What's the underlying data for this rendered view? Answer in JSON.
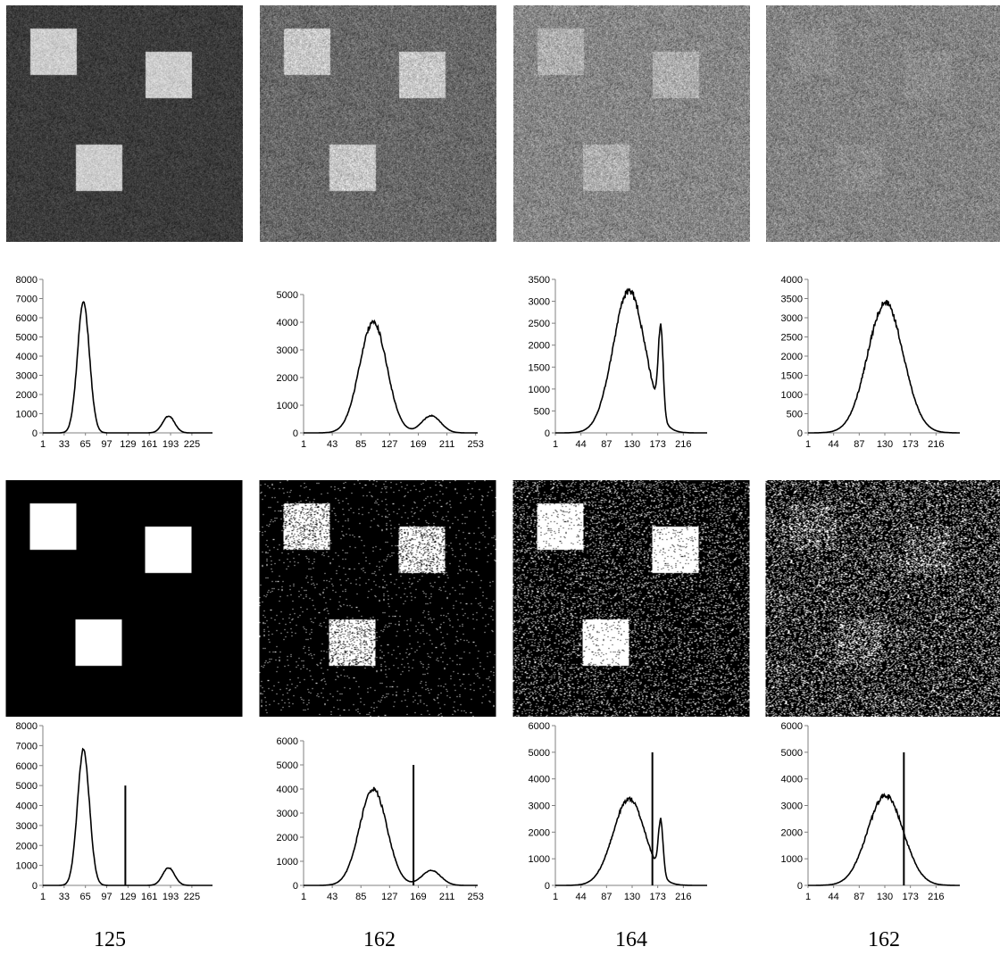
{
  "chart_data": [
    {
      "type": "line",
      "row": "original-histogram",
      "panel": 1,
      "ylim": [
        0,
        8000
      ],
      "yticks": [
        0,
        1000,
        2000,
        3000,
        4000,
        5000,
        6000,
        7000,
        8000
      ],
      "xticks": [
        "1",
        "33",
        "65",
        "97",
        "129",
        "161",
        "193",
        "225"
      ],
      "xlim": [
        1,
        256
      ],
      "peaks": [
        {
          "mu": 62,
          "sigma": 9,
          "h": 6800
        },
        {
          "mu": 190,
          "sigma": 9,
          "h": 880
        }
      ]
    },
    {
      "type": "line",
      "row": "original-histogram",
      "panel": 2,
      "ylim": [
        0,
        5000
      ],
      "yticks": [
        0,
        1000,
        2000,
        3000,
        4000,
        5000
      ],
      "xticks": [
        "1",
        "43",
        "85",
        "127",
        "169",
        "211",
        "253"
      ],
      "xlim": [
        1,
        256
      ],
      "peaks": [
        {
          "mu": 103,
          "sigma": 20,
          "h": 4000
        },
        {
          "mu": 188,
          "sigma": 14,
          "h": 620
        }
      ]
    },
    {
      "type": "line",
      "row": "original-histogram",
      "panel": 3,
      "ylim": [
        0,
        3500
      ],
      "yticks": [
        0,
        500,
        1000,
        1500,
        2000,
        2500,
        3000,
        3500
      ],
      "xticks": [
        "1",
        "44",
        "87",
        "130",
        "173",
        "216"
      ],
      "xlim": [
        1,
        256
      ],
      "peaks": [
        {
          "mu": 125,
          "sigma": 27,
          "h": 3250
        },
        {
          "mu": 178,
          "sigma": 4,
          "h": 2000
        }
      ]
    },
    {
      "type": "line",
      "row": "original-histogram",
      "panel": 4,
      "ylim": [
        0,
        4000
      ],
      "yticks": [
        0,
        500,
        1000,
        1500,
        2000,
        2500,
        3000,
        3500,
        4000
      ],
      "xticks": [
        "1",
        "44",
        "87",
        "130",
        "173",
        "216"
      ],
      "xlim": [
        1,
        256
      ],
      "peaks": [
        {
          "mu": 131,
          "sigma": 30,
          "h": 3380
        }
      ]
    },
    {
      "type": "line",
      "row": "threshold-histogram",
      "panel": 1,
      "ylim": [
        0,
        8000
      ],
      "yticks": [
        0,
        1000,
        2000,
        3000,
        4000,
        5000,
        6000,
        7000,
        8000
      ],
      "xticks": [
        "1",
        "33",
        "65",
        "97",
        "129",
        "161",
        "193",
        "225"
      ],
      "xlim": [
        1,
        256
      ],
      "threshold": 125,
      "threshold_line_value": 5000,
      "peaks": [
        {
          "mu": 62,
          "sigma": 9,
          "h": 6800
        },
        {
          "mu": 190,
          "sigma": 9,
          "h": 880
        }
      ]
    },
    {
      "type": "line",
      "row": "threshold-histogram",
      "panel": 2,
      "ylim": [
        0,
        6000
      ],
      "yticks": [
        0,
        1000,
        2000,
        3000,
        4000,
        5000,
        6000
      ],
      "xticks": [
        "1",
        "43",
        "85",
        "127",
        "169",
        "211",
        "253"
      ],
      "xlim": [
        1,
        256
      ],
      "threshold": 162,
      "threshold_line_value": 5000,
      "peaks": [
        {
          "mu": 103,
          "sigma": 20,
          "h": 4000
        },
        {
          "mu": 188,
          "sigma": 14,
          "h": 620
        }
      ]
    },
    {
      "type": "line",
      "row": "threshold-histogram",
      "panel": 3,
      "ylim": [
        0,
        6000
      ],
      "yticks": [
        0,
        1000,
        2000,
        3000,
        4000,
        5000,
        6000
      ],
      "xticks": [
        "1",
        "44",
        "87",
        "130",
        "173",
        "216"
      ],
      "xlim": [
        1,
        256
      ],
      "threshold": 164,
      "threshold_line_value": 5000,
      "peaks": [
        {
          "mu": 125,
          "sigma": 27,
          "h": 3250
        },
        {
          "mu": 178,
          "sigma": 4,
          "h": 2000
        }
      ]
    },
    {
      "type": "line",
      "row": "threshold-histogram",
      "panel": 4,
      "ylim": [
        0,
        6000
      ],
      "yticks": [
        0,
        1000,
        2000,
        3000,
        4000,
        5000,
        6000
      ],
      "xticks": [
        "1",
        "44",
        "87",
        "130",
        "173",
        "216"
      ],
      "xlim": [
        1,
        256
      ],
      "threshold": 162,
      "threshold_line_value": 5000,
      "peaks": [
        {
          "mu": 131,
          "sigma": 30,
          "h": 3380
        }
      ]
    }
  ],
  "threshold_labels": [
    "125",
    "162",
    "164",
    "162"
  ],
  "images": {
    "originals": [
      {
        "background_gray": 60,
        "square_gray": 205,
        "noise": 28
      },
      {
        "background_gray": 105,
        "square_gray": 200,
        "noise": 45
      },
      {
        "background_gray": 135,
        "square_gray": 175,
        "noise": 50
      },
      {
        "background_gray": 132,
        "square_gray": 140,
        "noise": 50
      }
    ],
    "binarized": [
      {
        "square_fill": 1.0,
        "background_dots": 0.0
      },
      {
        "square_fill": 0.82,
        "background_dots": 0.02
      },
      {
        "square_fill": 0.95,
        "background_dots": 0.12
      },
      {
        "square_fill": 0.35,
        "background_dots": 0.22
      }
    ]
  },
  "colors": {
    "line": "#000000",
    "axis": "#808080",
    "background": "#ffffff"
  }
}
